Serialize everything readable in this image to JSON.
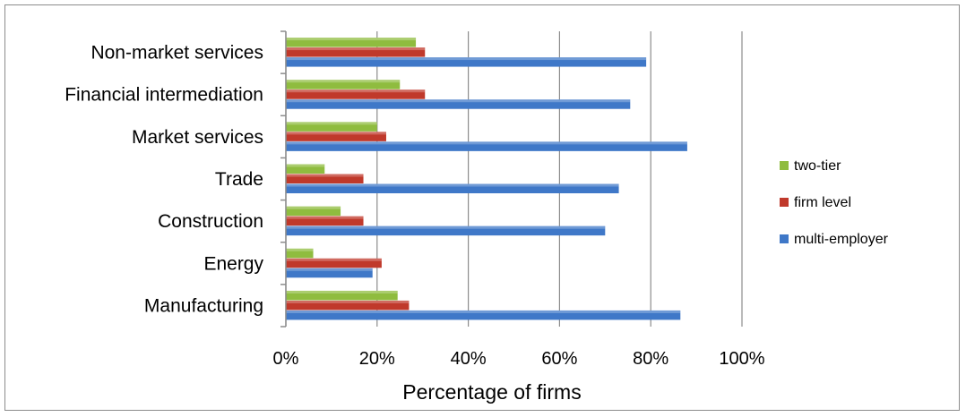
{
  "chart_data": {
    "type": "bar",
    "orientation": "horizontal",
    "title": "",
    "xlabel": "Percentage of firms",
    "ylabel": "",
    "xlim": [
      0,
      100
    ],
    "x_ticks": [
      "0%",
      "20%",
      "40%",
      "60%",
      "80%",
      "100%"
    ],
    "grid": "vertical",
    "legend_position": "right",
    "categories": [
      "Non-market services",
      "Financial intermediation",
      "Market services",
      "Trade",
      "Construction",
      "Energy",
      "Manufacturing"
    ],
    "series": [
      {
        "name": "two-tier",
        "color": "#8fbc3f",
        "values": [
          28.5,
          25,
          20,
          8.5,
          12,
          6,
          24.5
        ]
      },
      {
        "name": "firm level",
        "color": "#c0392b",
        "values": [
          30.5,
          30.5,
          22,
          17,
          17,
          21,
          27
        ]
      },
      {
        "name": "multi-employer",
        "color": "#3f78c8",
        "values": [
          79,
          75.5,
          88,
          73,
          70,
          19,
          86.5
        ]
      }
    ]
  }
}
